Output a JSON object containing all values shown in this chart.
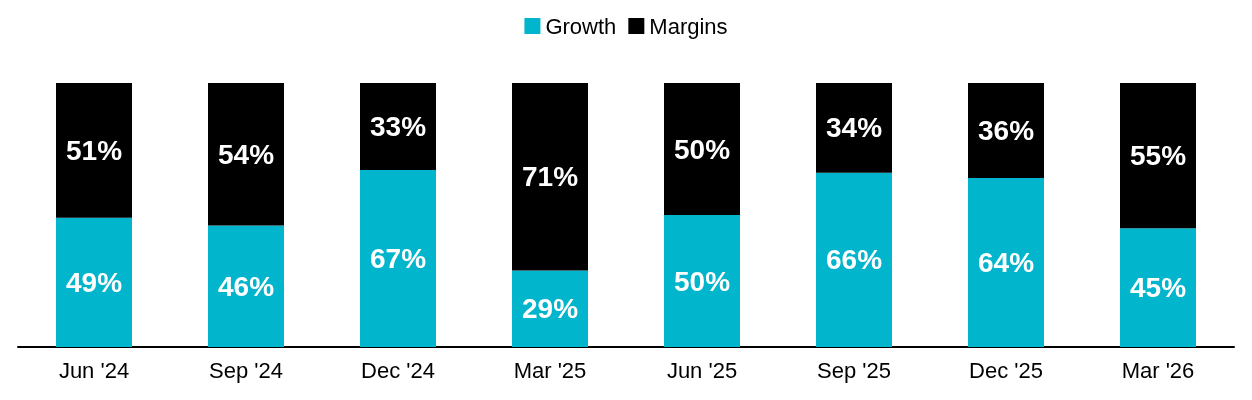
{
  "chart_data": {
    "type": "bar",
    "stacked": true,
    "categories": [
      "Jun '24",
      "Sep '24",
      "Dec '24",
      "Mar '25",
      "Jun '25",
      "Sep '25",
      "Dec '25",
      "Mar '26"
    ],
    "series": [
      {
        "name": "Growth",
        "color": "#00b5cc",
        "values": [
          49,
          46,
          67,
          29,
          50,
          66,
          64,
          45
        ],
        "value_labels": [
          "49%",
          "46%",
          "67%",
          "29%",
          "50%",
          "66%",
          "64%",
          "45%"
        ]
      },
      {
        "name": "Margins",
        "color": "#000000",
        "values": [
          51,
          54,
          33,
          71,
          50,
          34,
          36,
          55
        ],
        "value_labels": [
          "51%",
          "54%",
          "33%",
          "71%",
          "50%",
          "34%",
          "36%",
          "55%"
        ]
      }
    ],
    "legend": "top"
  }
}
